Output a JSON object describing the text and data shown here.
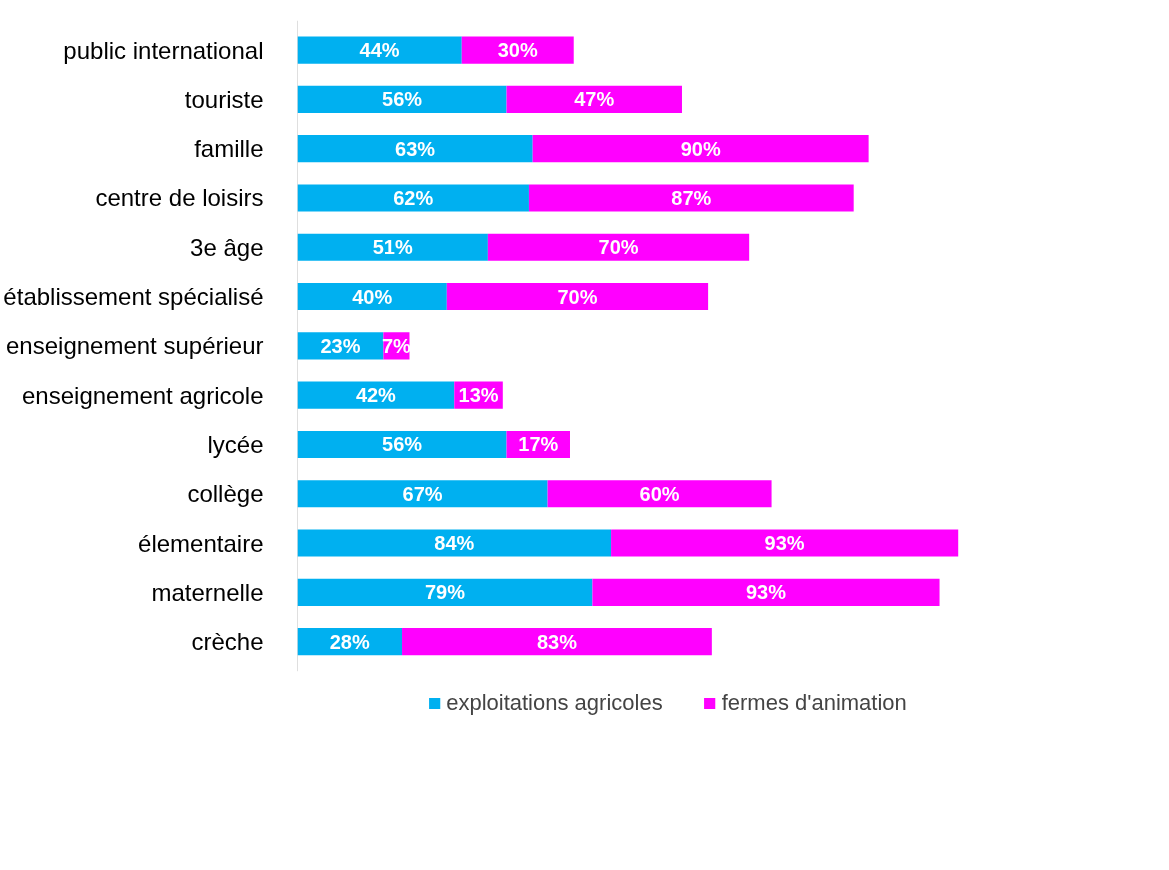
{
  "chart_data": {
    "type": "bar",
    "orientation": "horizontal",
    "stacked": true,
    "legend": "bottom",
    "grid": false,
    "tick_labels": "y",
    "categories": [
      "public international",
      "touriste",
      "famille",
      "centre de loisirs",
      "3e âge",
      "établissement spécialisé",
      "enseignement supérieur",
      "enseignement agricole",
      "lycée",
      "collège",
      "élementaire",
      "maternelle",
      "crèche"
    ],
    "series": [
      {
        "name": "exploitations agricoles",
        "color": "#00b0f0",
        "values": [
          44,
          56,
          63,
          62,
          51,
          40,
          23,
          42,
          56,
          67,
          84,
          79,
          28
        ],
        "value_labels": [
          "44%",
          "56%",
          "63%",
          "62%",
          "51%",
          "40%",
          "23%",
          "42%",
          "56%",
          "67%",
          "84%",
          "79%",
          "28%"
        ]
      },
      {
        "name": "fermes d'animation",
        "color": "#ff00ff",
        "values": [
          30,
          47,
          90,
          87,
          70,
          70,
          7,
          13,
          17,
          60,
          93,
          93,
          83
        ],
        "value_labels": [
          "30%",
          "47%",
          "90%",
          "87%",
          "70%",
          "70%",
          "7%",
          "13%",
          "17%",
          "60%",
          "93%",
          "93%",
          "83%"
        ]
      }
    ]
  }
}
